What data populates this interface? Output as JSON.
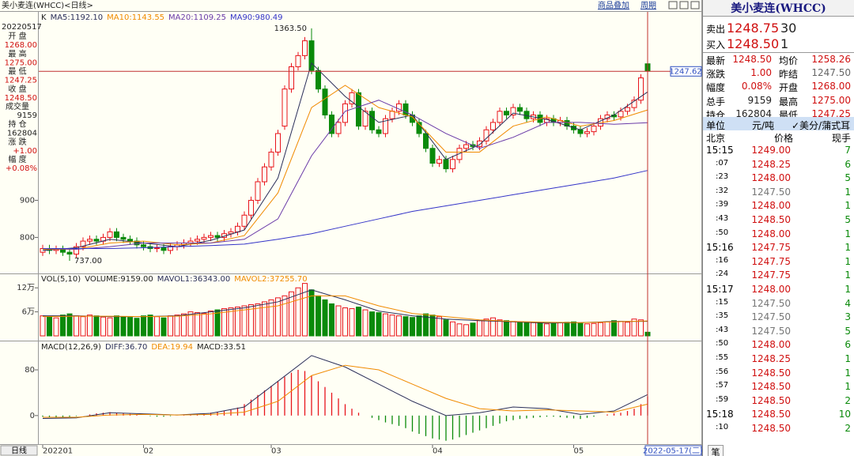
{
  "header": {
    "title": "美小麦连(WHCC)<日线>",
    "links": [
      "商品叠加",
      "周期"
    ]
  },
  "info_panel": {
    "date": "20220517",
    "rows": [
      {
        "label": "开 盘",
        "value": "1268.00"
      },
      {
        "label": "最 高",
        "value": "1275.00"
      },
      {
        "label": "最 低",
        "value": "1247.25"
      },
      {
        "label": "收 盘",
        "value": "1248.50"
      },
      {
        "label": "成交量",
        "value": "9159"
      },
      {
        "label": "持 仓",
        "value": "162804"
      },
      {
        "label": "涨 跌",
        "value": "+1.00"
      },
      {
        "label": "幅 度",
        "value": "+0.08%"
      }
    ]
  },
  "chart_data": [
    {
      "type": "candlestick",
      "label": "K",
      "up_color": "#e8141b",
      "down_color": "#0a8a0a",
      "open": [
        760,
        770,
        765,
        768,
        760,
        755,
        775,
        790,
        795,
        790,
        800,
        815,
        800,
        795,
        790,
        780,
        775,
        770,
        772,
        765,
        775,
        780,
        785,
        790,
        795,
        800,
        805,
        800,
        810,
        815,
        830,
        860,
        900,
        950,
        990,
        1030,
        1100,
        1200,
        1260,
        1290,
        1330,
        1250,
        1200,
        1130,
        1080,
        1110,
        1160,
        1190,
        1100,
        1140,
        1090,
        1080,
        1120,
        1140,
        1160,
        1130,
        1110,
        1080,
        1040,
        1000,
        1010,
        985,
        1010,
        1040,
        1050,
        1045,
        1060,
        1090,
        1110,
        1140,
        1130,
        1150,
        1140,
        1120,
        1130,
        1110,
        1120,
        1110,
        1115,
        1100,
        1090,
        1080,
        1085,
        1100,
        1120,
        1130,
        1125,
        1140,
        1150,
        1170,
        1268
      ],
      "high": [
        780,
        780,
        778,
        778,
        770,
        785,
        800,
        805,
        805,
        810,
        825,
        825,
        810,
        805,
        800,
        790,
        785,
        782,
        782,
        785,
        790,
        795,
        800,
        805,
        810,
        815,
        815,
        820,
        825,
        840,
        870,
        910,
        960,
        1000,
        1040,
        1090,
        1210,
        1270,
        1300,
        1340,
        1363.5,
        1260,
        1210,
        1140,
        1120,
        1170,
        1200,
        1200,
        1150,
        1150,
        1100,
        1130,
        1150,
        1170,
        1170,
        1140,
        1120,
        1090,
        1050,
        1020,
        1020,
        1020,
        1050,
        1060,
        1060,
        1070,
        1100,
        1120,
        1150,
        1150,
        1160,
        1160,
        1150,
        1140,
        1140,
        1130,
        1130,
        1125,
        1125,
        1110,
        1100,
        1095,
        1110,
        1130,
        1140,
        1140,
        1150,
        1160,
        1180,
        1240,
        1275
      ],
      "low": [
        750,
        755,
        755,
        750,
        737,
        745,
        765,
        780,
        780,
        780,
        790,
        790,
        785,
        780,
        770,
        765,
        760,
        760,
        755,
        755,
        765,
        770,
        775,
        780,
        785,
        790,
        790,
        790,
        800,
        805,
        820,
        850,
        890,
        940,
        980,
        1020,
        1090,
        1190,
        1250,
        1280,
        1240,
        1190,
        1120,
        1070,
        1070,
        1100,
        1150,
        1090,
        1090,
        1080,
        1070,
        1070,
        1110,
        1130,
        1120,
        1100,
        1070,
        1030,
        990,
        990,
        975,
        975,
        1000,
        1030,
        1035,
        1035,
        1050,
        1080,
        1100,
        1120,
        1120,
        1130,
        1110,
        1110,
        1100,
        1100,
        1100,
        1100,
        1090,
        1080,
        1070,
        1070,
        1075,
        1090,
        1110,
        1115,
        1115,
        1130,
        1140,
        1160,
        1247.25
      ],
      "close": [
        770,
        765,
        768,
        760,
        755,
        775,
        790,
        795,
        790,
        800,
        815,
        800,
        795,
        790,
        780,
        775,
        770,
        772,
        765,
        775,
        780,
        785,
        790,
        795,
        800,
        805,
        800,
        810,
        815,
        830,
        860,
        900,
        950,
        990,
        1030,
        1080,
        1200,
        1260,
        1290,
        1330,
        1250,
        1200,
        1130,
        1080,
        1110,
        1160,
        1190,
        1100,
        1140,
        1090,
        1080,
        1120,
        1140,
        1160,
        1130,
        1110,
        1080,
        1040,
        1000,
        1010,
        985,
        1010,
        1040,
        1050,
        1045,
        1060,
        1090,
        1110,
        1140,
        1130,
        1150,
        1140,
        1120,
        1130,
        1110,
        1120,
        1110,
        1115,
        1100,
        1090,
        1080,
        1085,
        1100,
        1120,
        1130,
        1125,
        1140,
        1150,
        1170,
        1230,
        1248.5
      ],
      "ylim": [
        705,
        1408
      ],
      "yticks": [
        800,
        900
      ],
      "ma": [
        {
          "name": "MA5:1192.10",
          "color": "#2b2f5a",
          "x": [
            0,
            5,
            10,
            15,
            20,
            25,
            30,
            35,
            40,
            45,
            50,
            55,
            60,
            65,
            70,
            75,
            80,
            85,
            90
          ],
          "values": [
            765,
            772,
            795,
            785,
            775,
            792,
            820,
            960,
            1270,
            1180,
            1110,
            1130,
            1010,
            1050,
            1135,
            1118,
            1090,
            1130,
            1192.1
          ]
        },
        {
          "name": "MA10:1143.55",
          "color": "#f08a00",
          "x": [
            0,
            5,
            10,
            15,
            20,
            25,
            30,
            35,
            40,
            45,
            50,
            55,
            60,
            65,
            70,
            75,
            80,
            85,
            90
          ],
          "values": [
            768,
            768,
            785,
            790,
            780,
            785,
            805,
            920,
            1150,
            1210,
            1150,
            1125,
            1030,
            1030,
            1100,
            1125,
            1100,
            1115,
            1143.55
          ]
        },
        {
          "name": "MA20:1109.25",
          "color": "#6a3aa8",
          "x": [
            0,
            5,
            10,
            15,
            20,
            25,
            30,
            35,
            40,
            45,
            50,
            55,
            60,
            65,
            70,
            75,
            80,
            85,
            90
          ],
          "values": [
            770,
            768,
            775,
            785,
            785,
            785,
            795,
            850,
            1020,
            1140,
            1170,
            1130,
            1080,
            1040,
            1070,
            1110,
            1110,
            1105,
            1109.25
          ]
        },
        {
          "name": "MA90:980.49",
          "color": "#3434c8",
          "x": [
            0,
            5,
            10,
            15,
            20,
            25,
            30,
            35,
            40,
            45,
            50,
            55,
            60,
            65,
            70,
            75,
            80,
            85,
            90
          ],
          "values": [
            770,
            770,
            770,
            772,
            775,
            778,
            782,
            795,
            810,
            830,
            850,
            870,
            885,
            900,
            915,
            930,
            945,
            960,
            980.49
          ]
        }
      ],
      "annotations": [
        {
          "label": "1363.50",
          "value": 1363.5,
          "x": 40
        },
        {
          "label": "737.00",
          "value": 737,
          "x": 4
        }
      ],
      "last_price": {
        "value": 1247.62,
        "label": "1247.62"
      }
    },
    {
      "type": "bar",
      "label": "VOL(5,10)",
      "title": "VOLUME:9159.00",
      "values": [
        50000,
        48000,
        45000,
        52000,
        55000,
        50000,
        48000,
        52000,
        50000,
        47000,
        45000,
        50000,
        48000,
        46000,
        44000,
        50000,
        52000,
        48000,
        45000,
        50000,
        52000,
        55000,
        60000,
        58000,
        56000,
        62000,
        65000,
        68000,
        70000,
        72000,
        75000,
        78000,
        80000,
        85000,
        90000,
        95000,
        100000,
        110000,
        120000,
        131000,
        115000,
        100000,
        90000,
        80000,
        75000,
        70000,
        68000,
        72000,
        65000,
        60000,
        58000,
        55000,
        52000,
        50000,
        48000,
        46000,
        50000,
        55000,
        52000,
        48000,
        40000,
        35000,
        30000,
        28000,
        32000,
        38000,
        42000,
        45000,
        40000,
        38000,
        36000,
        35000,
        34000,
        33000,
        32000,
        30000,
        31000,
        33000,
        34000,
        35000,
        32000,
        30000,
        31000,
        33000,
        35000,
        38000,
        36000,
        34000,
        42000,
        40000,
        9159
      ],
      "ylim": [
        0,
        150000
      ],
      "yticks": [
        {
          "value": 60000,
          "label": "6万"
        },
        {
          "value": 120000,
          "label": "12万"
        }
      ],
      "ma": [
        {
          "name": "MAVOL1:36343.00",
          "color": "#2b2f5a",
          "x": [
            0,
            5,
            10,
            15,
            20,
            25,
            30,
            35,
            40,
            45,
            50,
            55,
            60,
            65,
            70,
            75,
            80,
            85,
            90
          ],
          "values": [
            50000,
            50000,
            48000,
            48000,
            50000,
            60000,
            70000,
            85000,
            115000,
            90000,
            62000,
            50000,
            42000,
            38000,
            35000,
            32000,
            33000,
            36000,
            36343
          ]
        },
        {
          "name": "MAVOL2:37255.70",
          "color": "#f08a00",
          "x": [
            0,
            5,
            10,
            15,
            20,
            25,
            30,
            35,
            40,
            45,
            50,
            55,
            60,
            65,
            70,
            75,
            80,
            85,
            90
          ],
          "values": [
            48000,
            49000,
            49000,
            48000,
            49000,
            55000,
            65000,
            75000,
            100000,
            100000,
            75000,
            56000,
            48000,
            40000,
            36000,
            34000,
            33000,
            35000,
            37255.7
          ]
        }
      ]
    },
    {
      "type": "macd",
      "label": "MACD(12,26,9)",
      "title": "MACD:33.51",
      "up_color": "#e8141b",
      "down_color": "#0a8a0a",
      "values": [
        -2,
        -3,
        -4,
        -3,
        -2,
        -1,
        0,
        2,
        4,
        5,
        6,
        5,
        4,
        3,
        2,
        0,
        -1,
        -2,
        -2,
        -1,
        0,
        1,
        2,
        3,
        4,
        5,
        6,
        8,
        10,
        14,
        20,
        28,
        36,
        44,
        52,
        60,
        68,
        75,
        80,
        78,
        70,
        60,
        50,
        40,
        30,
        20,
        12,
        5,
        0,
        -4,
        -8,
        -12,
        -15,
        -18,
        -22,
        -28,
        -32,
        -36,
        -40,
        -42,
        -44,
        -42,
        -38,
        -34,
        -30,
        -26,
        -22,
        -18,
        -14,
        -10,
        -8,
        -6,
        -5,
        -4,
        -3,
        -2,
        -2,
        -3,
        -4,
        -5,
        -6,
        -4,
        -2,
        0,
        2,
        4,
        5,
        8,
        12,
        20,
        33.51
      ],
      "ylim": [
        -50,
        127
      ],
      "yticks": [
        0,
        80
      ],
      "series": [
        {
          "name": "DIFF:36.70",
          "color": "#2b2f5a",
          "x": [
            0,
            5,
            10,
            15,
            20,
            25,
            30,
            35,
            40,
            45,
            50,
            55,
            60,
            65,
            70,
            75,
            80,
            85,
            90
          ],
          "values": [
            -5,
            -4,
            5,
            3,
            1,
            4,
            15,
            60,
            105,
            85,
            55,
            25,
            0,
            5,
            15,
            12,
            2,
            8,
            36.7
          ]
        },
        {
          "name": "DEA:19.94",
          "color": "#f08a00",
          "x": [
            0,
            5,
            10,
            15,
            20,
            25,
            30,
            35,
            40,
            45,
            50,
            55,
            60,
            65,
            70,
            75,
            80,
            85,
            90
          ],
          "values": [
            -3,
            -3,
            1,
            2,
            1,
            2,
            6,
            25,
            70,
            88,
            80,
            55,
            30,
            12,
            8,
            10,
            8,
            6,
            19.94
          ]
        }
      ]
    }
  ],
  "x_axis": {
    "label": "日线",
    "ticks": [
      {
        "value": 0,
        "label": "202201"
      },
      {
        "value": 15,
        "label": "02"
      },
      {
        "value": 34,
        "label": "03"
      },
      {
        "value": 58,
        "label": "04"
      },
      {
        "value": 79,
        "label": "05"
      }
    ],
    "cursor": "2022-05-17(二)",
    "tab": "笔"
  },
  "quote_panel": {
    "title": "美小麦连(WHCC)",
    "book": [
      {
        "label": "卖出",
        "price": "1248.75",
        "volume": 30
      },
      {
        "label": "买入",
        "price": "1248.50",
        "volume": 1
      }
    ],
    "rows": [
      [
        "最新",
        "1248.50",
        "均价",
        "1258.26"
      ],
      [
        "涨跌",
        "1.00",
        "昨结",
        "1247.50"
      ],
      [
        "幅度",
        "0.08%",
        "开盘",
        "1268.00"
      ],
      [
        "总手",
        "9159",
        "最高",
        "1275.00"
      ],
      [
        "持仓",
        "162804",
        "最低",
        "1247.25"
      ]
    ],
    "unit": [
      "单位",
      "元/吨",
      "✓美分/蒲式耳"
    ],
    "trade_header": [
      "北京",
      "价格",
      "现手"
    ],
    "trades": [
      {
        "time": "15:15",
        "price": "1249.00",
        "volume": 7
      },
      {
        "time": ":07",
        "price": "1248.25",
        "volume": 6
      },
      {
        "time": ":23",
        "price": "1248.00",
        "volume": 5
      },
      {
        "time": ":32",
        "price": "1247.50",
        "volume": 1
      },
      {
        "time": ":39",
        "price": "1248.00",
        "volume": 1
      },
      {
        "time": ":43",
        "price": "1248.50",
        "volume": 5
      },
      {
        "time": ":50",
        "price": "1248.00",
        "volume": 1
      },
      {
        "time": "15:16",
        "price": "1247.75",
        "volume": 1
      },
      {
        "time": ":16",
        "price": "1247.75",
        "volume": 1
      },
      {
        "time": ":24",
        "price": "1247.75",
        "volume": 1
      },
      {
        "time": "15:17",
        "price": "1248.00",
        "volume": 1
      },
      {
        "time": ":15",
        "price": "1247.50",
        "volume": 4
      },
      {
        "time": ":35",
        "price": "1247.50",
        "volume": 3
      },
      {
        "time": ":43",
        "price": "1247.50",
        "volume": 5
      },
      {
        "time": ":50",
        "price": "1248.00",
        "volume": 6
      },
      {
        "time": ":55",
        "price": "1248.25",
        "volume": 1
      },
      {
        "time": ":56",
        "price": "1248.50",
        "volume": 1
      },
      {
        "time": ":57",
        "price": "1248.50",
        "volume": 1
      },
      {
        "time": ":59",
        "price": "1248.50",
        "volume": 2
      },
      {
        "time": "15:18",
        "price": "1248.50",
        "volume": 10
      },
      {
        "time": ":10",
        "price": "1248.50",
        "volume": 2
      }
    ]
  }
}
